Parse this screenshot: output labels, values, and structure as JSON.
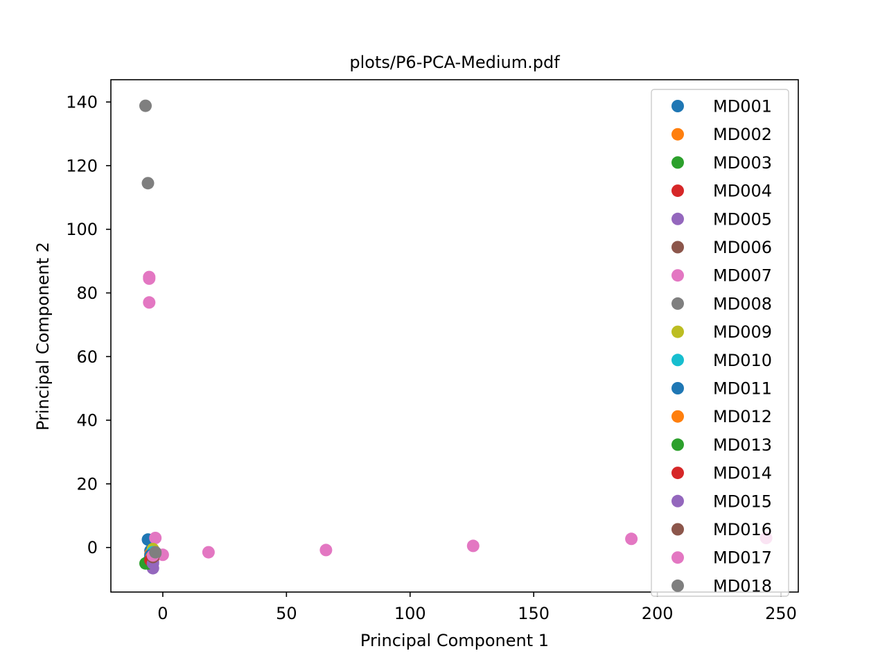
{
  "chart_data": {
    "type": "scatter",
    "title": "plots/P6-PCA-Medium.pdf",
    "xlabel": "Principal Component 1",
    "ylabel": "Principal Component 2",
    "xlim": [
      -21,
      257
    ],
    "ylim": [
      -14,
      147
    ],
    "xticks": [
      0,
      50,
      100,
      150,
      200,
      250
    ],
    "yticks": [
      0,
      20,
      40,
      60,
      80,
      100,
      120,
      140
    ],
    "grid": false,
    "legend_position": "upper right",
    "series": [
      {
        "name": "MD001",
        "color": "#1f77b4",
        "points": [
          [
            -6,
            2.5
          ],
          [
            -5,
            -1
          ],
          [
            -4,
            -3
          ]
        ]
      },
      {
        "name": "MD002",
        "color": "#ff7f0e",
        "points": [
          [
            -5,
            -2
          ],
          [
            -4,
            -3
          ]
        ]
      },
      {
        "name": "MD003",
        "color": "#2ca02c",
        "points": [
          [
            -6,
            -4.5
          ],
          [
            -5,
            -3.5
          ]
        ]
      },
      {
        "name": "MD004",
        "color": "#d62728",
        "points": [
          [
            -5,
            -3
          ],
          [
            -4,
            -2.5
          ]
        ]
      },
      {
        "name": "MD005",
        "color": "#9467bd",
        "points": [
          [
            -4,
            -6.5
          ],
          [
            -4,
            -4.5
          ]
        ]
      },
      {
        "name": "MD006",
        "color": "#8c564b",
        "points": [
          [
            -4,
            -3.5
          ]
        ]
      },
      {
        "name": "MD007",
        "color": "#e377c2",
        "points": [
          [
            -5.5,
            85
          ],
          [
            -5.5,
            84.5
          ],
          [
            -5.5,
            77
          ],
          [
            -3,
            3
          ],
          [
            0,
            -2.3
          ],
          [
            18.5,
            -1.5
          ],
          [
            66,
            -0.8
          ],
          [
            125.5,
            0.5
          ],
          [
            189.5,
            2.7
          ],
          [
            244,
            3
          ]
        ]
      },
      {
        "name": "MD008",
        "color": "#7f7f7f",
        "points": [
          [
            -7,
            138.8
          ],
          [
            -6,
            114.5
          ],
          [
            -3.5,
            -1.2
          ],
          [
            -3,
            -1.8
          ]
        ]
      },
      {
        "name": "MD009",
        "color": "#bcbd22",
        "points": [
          [
            -4,
            -0.5
          ]
        ]
      },
      {
        "name": "MD010",
        "color": "#17becf",
        "points": [
          [
            -4,
            -1.5
          ]
        ]
      },
      {
        "name": "MD011",
        "color": "#1f77b4",
        "points": [
          [
            -5,
            -2.5
          ]
        ]
      },
      {
        "name": "MD012",
        "color": "#ff7f0e",
        "points": [
          [
            -4.5,
            -3
          ]
        ]
      },
      {
        "name": "MD013",
        "color": "#2ca02c",
        "points": [
          [
            -7,
            -5
          ],
          [
            -6,
            -5
          ]
        ]
      },
      {
        "name": "MD014",
        "color": "#d62728",
        "points": [
          [
            -5,
            -4
          ],
          [
            -4,
            -3.5
          ]
        ]
      },
      {
        "name": "MD015",
        "color": "#9467bd",
        "points": [
          [
            -4,
            -5
          ]
        ]
      },
      {
        "name": "MD016",
        "color": "#8c564b",
        "points": [
          [
            -4,
            -3
          ]
        ]
      },
      {
        "name": "MD017",
        "color": "#e377c2",
        "points": [
          [
            -4,
            -2.5
          ]
        ]
      },
      {
        "name": "MD018",
        "color": "#7f7f7f",
        "points": [
          [
            -3,
            -1.5
          ]
        ]
      }
    ]
  }
}
